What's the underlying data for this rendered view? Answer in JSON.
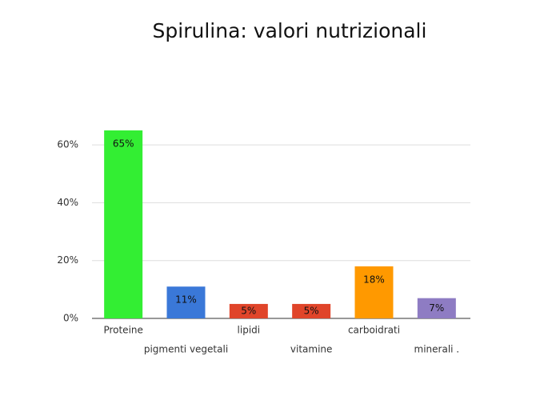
{
  "chart_data": {
    "type": "bar",
    "title": "Spirulina: valori nutrizionali",
    "categories": [
      "Proteine",
      "pigmenti vegetali",
      "lipidi",
      "vitamine",
      "carboidrati",
      "minerali ."
    ],
    "values": [
      65,
      11,
      5,
      5,
      18,
      7
    ],
    "value_labels": [
      "65%",
      "11%",
      "5%",
      "5%",
      "18%",
      "7%"
    ],
    "colors": [
      "#33ee33",
      "#3a78d8",
      "#e0452a",
      "#e0452a",
      "#ff9900",
      "#8e7cc3"
    ],
    "ylim": [
      0,
      65
    ],
    "yticks": [
      {
        "value": 0,
        "label": "0%"
      },
      {
        "value": 20,
        "label": "20%"
      },
      {
        "value": 40,
        "label": "40%"
      },
      {
        "value": 60,
        "label": "60%"
      }
    ],
    "grid": true
  }
}
